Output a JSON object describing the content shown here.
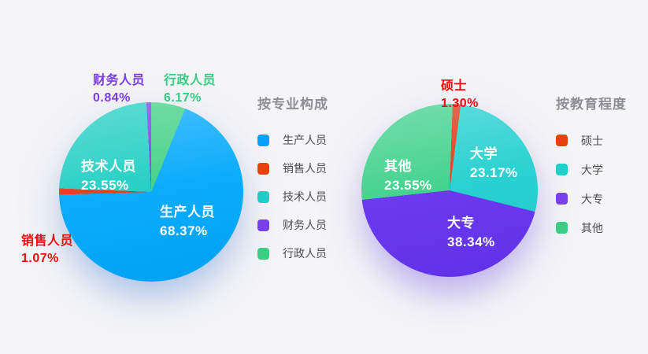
{
  "chart_data": [
    {
      "type": "pie",
      "title": "按专业构成",
      "legend_position": "right",
      "start_angle_deg": 22.2,
      "glow_color": "rgba(66,134,222,0.35)",
      "slices": [
        {
          "label": "生产人员",
          "value": 68.37,
          "pct": "68.37%",
          "color": "#00A8FB",
          "legend_color": "#00A2FF"
        },
        {
          "label": "销售人员",
          "value": 1.07,
          "pct": "1.07%",
          "color": "#E8320D",
          "legend_color": "#E8420C",
          "label_color": "#EE0D0D"
        },
        {
          "label": "技术人员",
          "value": 23.55,
          "pct": "23.55%",
          "color": "#1BCDC2",
          "legend_color": "#1FCFC5"
        },
        {
          "label": "财务人员",
          "value": 0.84,
          "pct": "0.84%",
          "color": "#7939E8",
          "legend_color": "#7840E8",
          "label_color": "#7B3BE8"
        },
        {
          "label": "行政人员",
          "value": 6.17,
          "pct": "6.17%",
          "color": "#3ED083",
          "legend_color": "#3CCE85",
          "label_color": "#35CC82"
        }
      ]
    },
    {
      "type": "pie",
      "title": "按教育程度",
      "legend_position": "right",
      "start_angle_deg": 2,
      "glow_color": "rgba(110,62,238,0.35)",
      "slices": [
        {
          "label": "硕士",
          "value": 1.3,
          "pct": "1.30%",
          "color": "#DC3310",
          "legend_color": "#E8420C",
          "label_color": "#EA0C0C"
        },
        {
          "label": "大学",
          "value": 23.17,
          "pct": "23.17%",
          "color": "#1ECFCE",
          "legend_color": "#1FCFC9"
        },
        {
          "label": "大专",
          "value": 38.34,
          "pct": "38.34%",
          "color": "#6430EF",
          "legend_color": "#7840E8"
        },
        {
          "label": "其他",
          "value": 23.55,
          "pct": "23.55%",
          "color": "#3BD089",
          "legend_color": "#3CCE85"
        }
      ]
    }
  ]
}
